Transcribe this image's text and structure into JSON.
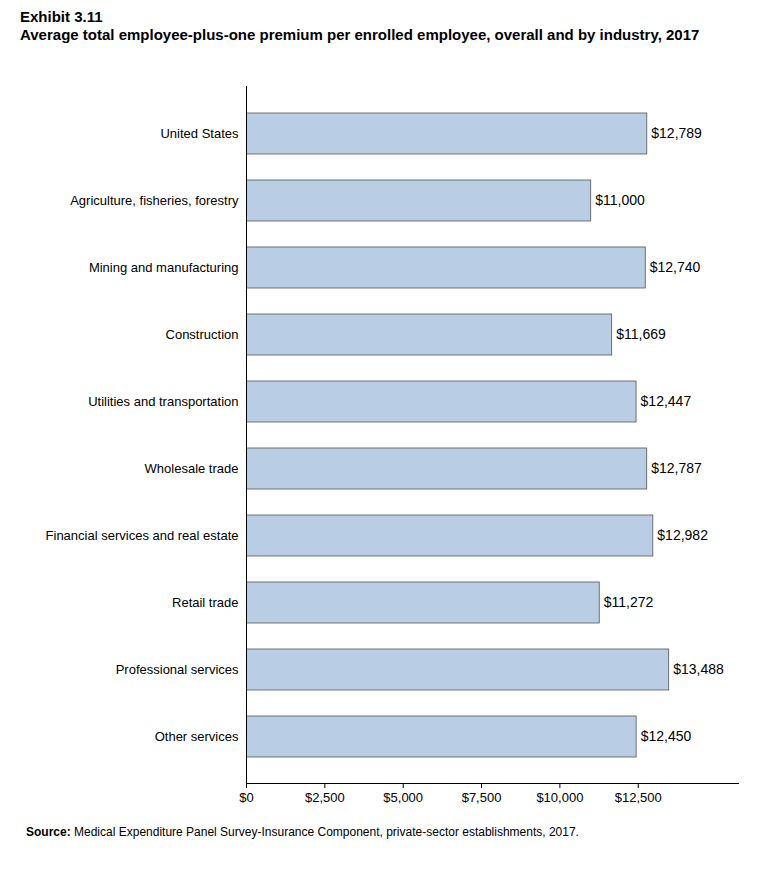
{
  "chart_data": {
    "type": "bar",
    "orientation": "horizontal",
    "title": "Exhibit 3.11",
    "subtitle": "Average total employee-plus-one premium per enrolled employee, overall and by industry, 2017",
    "caption": "Source: Medical Expenditure Panel Survey-Insurance Component, private-sector establishments, 2017.",
    "categories": [
      "United States",
      "Agriculture, fisheries, forestry",
      "Mining and manufacturing",
      "Construction",
      "Utilities and transportation",
      "Wholesale trade",
      "Financial services and real estate",
      "Retail trade",
      "Professional services",
      "Other services"
    ],
    "values": [
      12789,
      11000,
      12740,
      11669,
      12447,
      12787,
      12982,
      11272,
      13488,
      12450
    ],
    "value_labels": [
      "$12,789",
      "$11,000",
      "$12,740",
      "$11,669",
      "$12,447",
      "$12,787",
      "$12,982",
      "$11,272",
      "$13,488",
      "$12,450"
    ],
    "data_labels": true,
    "color": "#b9cde5",
    "xlim": [
      0,
      15700
    ],
    "xticks": [
      {
        "value": 0,
        "label": "$0"
      },
      {
        "value": 2500,
        "label": "$2,500"
      },
      {
        "value": 5000,
        "label": "$5,000"
      },
      {
        "value": 7500,
        "label": "$7,500"
      },
      {
        "value": 10000,
        "label": "$10,000"
      },
      {
        "value": 12500,
        "label": "$12,500"
      }
    ],
    "grid": false
  }
}
